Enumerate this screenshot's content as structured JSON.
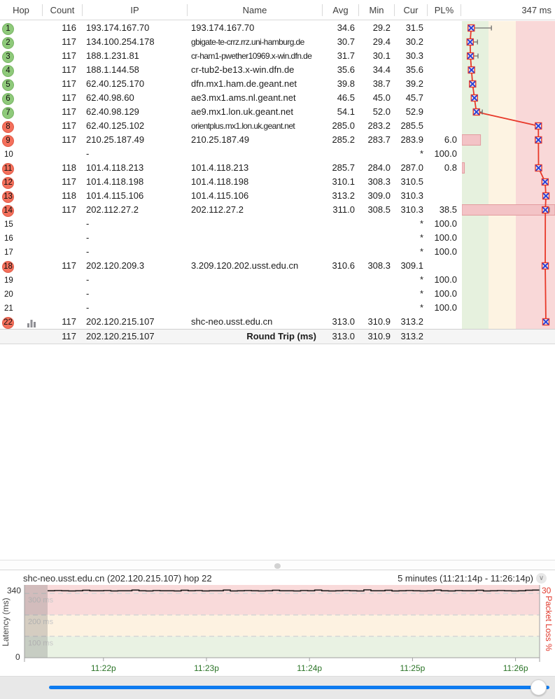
{
  "header": {
    "columns": [
      "Hop",
      "Count",
      "IP",
      "Name",
      "Avg",
      "Min",
      "Cur",
      "PL%"
    ],
    "scale_label": "347 ms"
  },
  "graph_column": {
    "scale_max": 347,
    "pl_scale_max": 30,
    "band_colors": {
      "green": "#e6f1de",
      "yellow": "#fdf3e2",
      "red": "#f9d8d8"
    },
    "line_color": "#e8392a",
    "marker_x_color": "#2b3fd4",
    "pl_bar_fill": "#f3c3c6",
    "pl_bar_border": "#e29a9e"
  },
  "table": {
    "rows": [
      {
        "hop": "1",
        "status": "green",
        "chart_icon": false,
        "count": "116",
        "ip": "193.174.167.70",
        "name": "193.174.167.70",
        "avg": "34.6",
        "min": "29.2",
        "cur": "31.5",
        "pl": "",
        "graph": {
          "avg": 34.6,
          "max": 110
        },
        "pl_bar": 0
      },
      {
        "hop": "2",
        "status": "green",
        "chart_icon": false,
        "count": "117",
        "ip": "134.100.254.178",
        "name": "gbigate-te-crrz.rrz.uni-hamburg.de",
        "avg": "30.7",
        "min": "29.4",
        "cur": "30.2",
        "pl": "",
        "graph": {
          "avg": 30.7,
          "max": 58
        },
        "pl_bar": 0
      },
      {
        "hop": "3",
        "status": "green",
        "chart_icon": false,
        "count": "117",
        "ip": "188.1.231.81",
        "name": "cr-ham1-pwether10969.x-win.dfn.de",
        "avg": "31.7",
        "min": "30.1",
        "cur": "30.3",
        "pl": "",
        "graph": {
          "avg": 31.7,
          "max": 60
        },
        "pl_bar": 0
      },
      {
        "hop": "4",
        "status": "green",
        "chart_icon": false,
        "count": "117",
        "ip": "188.1.144.58",
        "name": "cr-tub2-be13.x-win.dfn.de",
        "avg": "35.6",
        "min": "34.4",
        "cur": "35.6",
        "pl": "",
        "graph": {
          "avg": 35.6,
          "max": 48
        },
        "pl_bar": 0
      },
      {
        "hop": "5",
        "status": "green",
        "chart_icon": false,
        "count": "117",
        "ip": "62.40.125.170",
        "name": "dfn.mx1.ham.de.geant.net",
        "avg": "39.8",
        "min": "38.7",
        "cur": "39.2",
        "pl": "",
        "graph": {
          "avg": 39.8,
          "max": 52
        },
        "pl_bar": 0
      },
      {
        "hop": "6",
        "status": "green",
        "chart_icon": false,
        "count": "117",
        "ip": "62.40.98.60",
        "name": "ae3.mx1.ams.nl.geant.net",
        "avg": "46.5",
        "min": "45.0",
        "cur": "45.7",
        "pl": "",
        "graph": {
          "avg": 46.5,
          "max": 56
        },
        "pl_bar": 0
      },
      {
        "hop": "7",
        "status": "green",
        "chart_icon": false,
        "count": "117",
        "ip": "62.40.98.129",
        "name": "ae9.mx1.lon.uk.geant.net",
        "avg": "54.1",
        "min": "52.0",
        "cur": "52.9",
        "pl": "",
        "graph": {
          "avg": 54.1,
          "max": 76
        },
        "pl_bar": 0
      },
      {
        "hop": "8",
        "status": "red",
        "chart_icon": false,
        "count": "117",
        "ip": "62.40.125.102",
        "name": "orientplus.mx1.lon.uk.geant.net",
        "avg": "285.0",
        "min": "283.2",
        "cur": "285.5",
        "pl": "",
        "graph": {
          "avg": 285.0,
          "max": 296
        },
        "pl_bar": 0
      },
      {
        "hop": "9",
        "status": "red",
        "chart_icon": false,
        "count": "117",
        "ip": "210.25.187.49",
        "name": "210.25.187.49",
        "avg": "285.2",
        "min": "283.7",
        "cur": "283.9",
        "pl": "6.0",
        "graph": {
          "avg": 285.2,
          "max": 294
        },
        "pl_bar": 6.0
      },
      {
        "hop": "10",
        "status": "none",
        "chart_icon": false,
        "count": "",
        "ip": "-",
        "name": "",
        "avg": "",
        "min": "",
        "cur": "*",
        "pl": "100.0",
        "graph": null,
        "pl_bar": 0
      },
      {
        "hop": "11",
        "status": "red",
        "chart_icon": false,
        "count": "118",
        "ip": "101.4.118.213",
        "name": "101.4.118.213",
        "avg": "285.7",
        "min": "284.0",
        "cur": "287.0",
        "pl": "0.8",
        "graph": {
          "avg": 285.7,
          "max": 291
        },
        "pl_bar": 0.8
      },
      {
        "hop": "12",
        "status": "red",
        "chart_icon": false,
        "count": "117",
        "ip": "101.4.118.198",
        "name": "101.4.118.198",
        "avg": "310.1",
        "min": "308.3",
        "cur": "310.5",
        "pl": "",
        "graph": {
          "avg": 310.1,
          "max": 322
        },
        "pl_bar": 0
      },
      {
        "hop": "13",
        "status": "red",
        "chart_icon": false,
        "count": "118",
        "ip": "101.4.115.106",
        "name": "101.4.115.106",
        "avg": "313.2",
        "min": "309.0",
        "cur": "310.3",
        "pl": "",
        "graph": {
          "avg": 313.2,
          "max": 326
        },
        "pl_bar": 0
      },
      {
        "hop": "14",
        "status": "red",
        "chart_icon": false,
        "count": "117",
        "ip": "202.112.27.2",
        "name": "202.112.27.2",
        "avg": "311.0",
        "min": "308.5",
        "cur": "310.3",
        "pl": "38.5",
        "graph": {
          "avg": 311.0,
          "max": 326
        },
        "pl_bar": 38.5
      },
      {
        "hop": "15",
        "status": "none",
        "chart_icon": false,
        "count": "",
        "ip": "-",
        "name": "",
        "avg": "",
        "min": "",
        "cur": "*",
        "pl": "100.0",
        "graph": null,
        "pl_bar": 0
      },
      {
        "hop": "16",
        "status": "none",
        "chart_icon": false,
        "count": "",
        "ip": "-",
        "name": "",
        "avg": "",
        "min": "",
        "cur": "*",
        "pl": "100.0",
        "graph": null,
        "pl_bar": 0
      },
      {
        "hop": "17",
        "status": "none",
        "chart_icon": false,
        "count": "",
        "ip": "-",
        "name": "",
        "avg": "",
        "min": "",
        "cur": "*",
        "pl": "100.0",
        "graph": null,
        "pl_bar": 0
      },
      {
        "hop": "18",
        "status": "red",
        "chart_icon": false,
        "count": "117",
        "ip": "202.120.209.3",
        "name": "3.209.120.202.usst.edu.cn",
        "avg": "310.6",
        "min": "308.3",
        "cur": "309.1",
        "pl": "",
        "graph": {
          "avg": 310.6,
          "max": 322
        },
        "pl_bar": 0
      },
      {
        "hop": "19",
        "status": "none",
        "chart_icon": false,
        "count": "",
        "ip": "-",
        "name": "",
        "avg": "",
        "min": "",
        "cur": "*",
        "pl": "100.0",
        "graph": null,
        "pl_bar": 0
      },
      {
        "hop": "20",
        "status": "none",
        "chart_icon": false,
        "count": "",
        "ip": "-",
        "name": "",
        "avg": "",
        "min": "",
        "cur": "*",
        "pl": "100.0",
        "graph": null,
        "pl_bar": 0
      },
      {
        "hop": "21",
        "status": "none",
        "chart_icon": false,
        "count": "",
        "ip": "-",
        "name": "",
        "avg": "",
        "min": "",
        "cur": "*",
        "pl": "100.0",
        "graph": null,
        "pl_bar": 0
      },
      {
        "hop": "22",
        "status": "red",
        "chart_icon": true,
        "count": "117",
        "ip": "202.120.215.107",
        "name": "shc-neo.usst.edu.cn",
        "avg": "313.0",
        "min": "310.9",
        "cur": "313.2",
        "pl": "",
        "graph": {
          "avg": 313.0,
          "max": 318
        },
        "pl_bar": 0
      }
    ],
    "summary": {
      "count": "117",
      "ip": "202.120.215.107",
      "label": "Round Trip (ms)",
      "avg": "313.0",
      "min": "310.9",
      "cur": "313.2"
    }
  },
  "bottom_panel": {
    "title": "shc-neo.usst.edu.cn (202.120.215.107) hop 22",
    "range_label": "5 minutes (11:21:14p - 11:26:14p)",
    "chevron": "⌄",
    "y_top": "340",
    "y_bottom": "0",
    "y_left_label": "Latency (ms)",
    "y_right_top": "30",
    "y_right_label": "Packet Loss %",
    "band_labels": [
      "300 ms",
      "200 ms",
      "100 ms"
    ],
    "x_ticks": [
      "11:22p",
      "11:23p",
      "11:24p",
      "11:25p",
      "11:26p"
    ],
    "time_color": "#2a7326"
  },
  "chart_data": {
    "type": "line",
    "title": "shc-neo.usst.edu.cn (202.120.215.107) hop 22",
    "xlabel": "time (11:21:14p - 11:26:14p)",
    "ylabel": "Latency (ms)",
    "ylim": [
      0,
      340
    ],
    "right_axis": {
      "label": "Packet Loss %",
      "max": 30
    },
    "band_thresholds_ms": [
      100,
      200,
      300
    ],
    "x_tick_labels": [
      "11:22p",
      "11:23p",
      "11:24p",
      "11:25p",
      "11:26p"
    ],
    "values": [
      313,
      314,
      313,
      312,
      313,
      315,
      313,
      313,
      314,
      312,
      313,
      313,
      316,
      313,
      312,
      314,
      313,
      313,
      312,
      315,
      313,
      314,
      312,
      313,
      313,
      316,
      312,
      313,
      314,
      313,
      312,
      313,
      315,
      313,
      313,
      312,
      314,
      313,
      316,
      313,
      312,
      313,
      314,
      313,
      312,
      317,
      313,
      313,
      315,
      312,
      313,
      314,
      313,
      312,
      313,
      316,
      313,
      312,
      314,
      313,
      313,
      315,
      312,
      313,
      314,
      313,
      312,
      313,
      315,
      316
    ]
  }
}
